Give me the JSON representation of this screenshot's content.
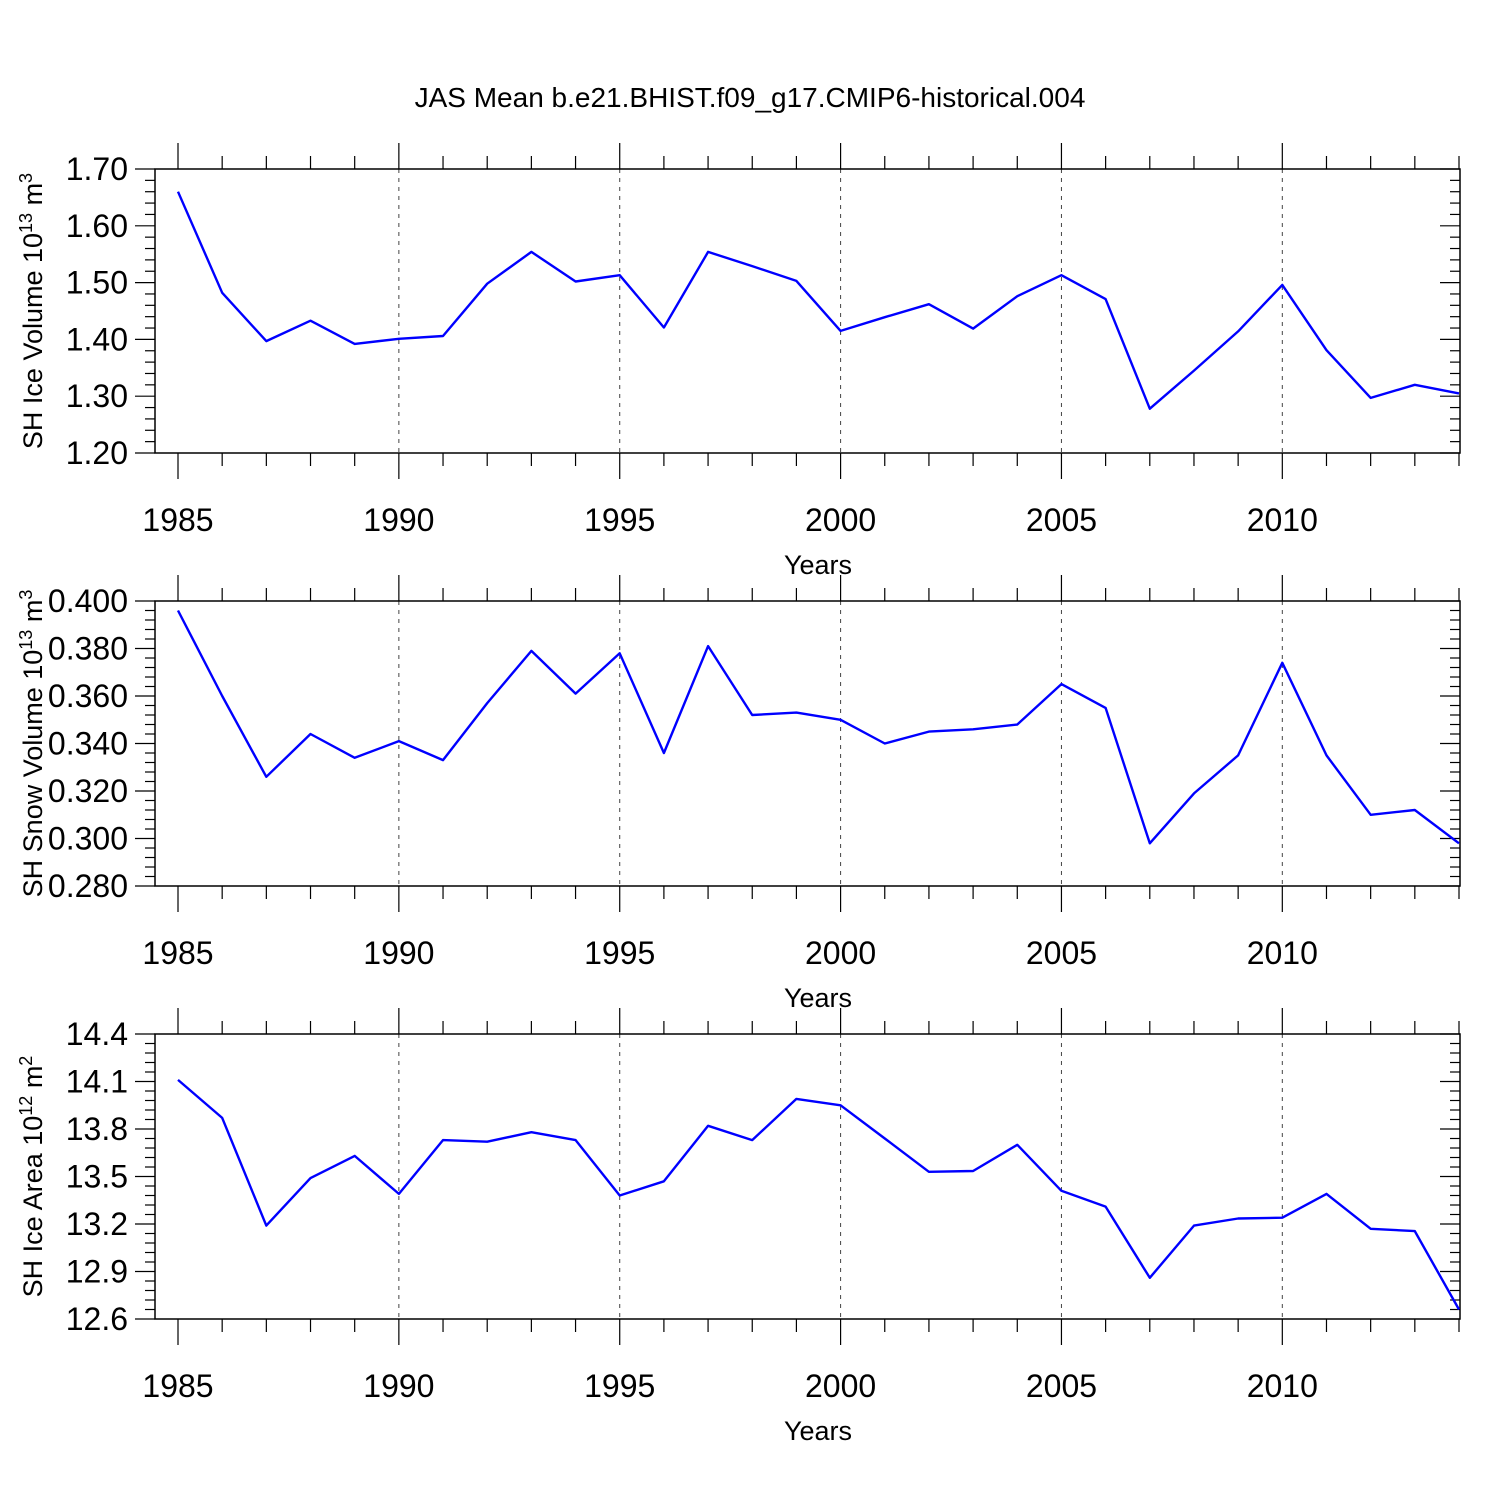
{
  "title": "JAS Mean b.e21.BHIST.f09_g17.CMIP6-historical.004",
  "colors": {
    "series": "#0000ff",
    "axis": "#000000"
  },
  "chart_data": [
    {
      "type": "line",
      "xlabel": "Years",
      "ylabel_main": "SH Ice Volume 10",
      "ylabel_exp": "13",
      "ylabel_unit": " m",
      "ylabel_unit_exp": "3",
      "xlim": [
        1985,
        2014
      ],
      "ylim": [
        1.2,
        1.7
      ],
      "yticks": [
        1.2,
        1.3,
        1.4,
        1.5,
        1.6,
        1.7
      ],
      "ytick_labels": [
        "1.20",
        "1.30",
        "1.40",
        "1.50",
        "1.60",
        "1.70"
      ],
      "xticks": [
        1985,
        1990,
        1995,
        2000,
        2005,
        2010
      ],
      "xtick_labels": [
        "1985",
        "1990",
        "1995",
        "2000",
        "2005",
        "2010"
      ],
      "x": [
        1985,
        1986,
        1987,
        1988,
        1989,
        1990,
        1991,
        1992,
        1993,
        1994,
        1995,
        1996,
        1997,
        1998,
        1999,
        2000,
        2001,
        2002,
        2003,
        2004,
        2005,
        2006,
        2007,
        2008,
        2009,
        2010,
        2011,
        2012,
        2013,
        2014
      ],
      "y": [
        1.66,
        1.482,
        1.397,
        1.433,
        1.392,
        1.401,
        1.406,
        1.498,
        1.554,
        1.502,
        1.513,
        1.421,
        1.554,
        1.529,
        1.503,
        1.415,
        1.439,
        1.462,
        1.419,
        1.476,
        1.513,
        1.471,
        1.278,
        1.345,
        1.414,
        1.496,
        1.381,
        1.297,
        1.32,
        1.305
      ]
    },
    {
      "type": "line",
      "xlabel": "Years",
      "ylabel_main": "SH Snow Volume 10",
      "ylabel_exp": "13",
      "ylabel_unit": " m",
      "ylabel_unit_exp": "3",
      "xlim": [
        1985,
        2014
      ],
      "ylim": [
        0.28,
        0.4
      ],
      "yticks": [
        0.28,
        0.3,
        0.32,
        0.34,
        0.36,
        0.38,
        0.4
      ],
      "ytick_labels": [
        "0.280",
        "0.300",
        "0.320",
        "0.340",
        "0.360",
        "0.380",
        "0.400"
      ],
      "xticks": [
        1985,
        1990,
        1995,
        2000,
        2005,
        2010
      ],
      "xtick_labels": [
        "1985",
        "1990",
        "1995",
        "2000",
        "2005",
        "2010"
      ],
      "x": [
        1985,
        1986,
        1987,
        1988,
        1989,
        1990,
        1991,
        1992,
        1993,
        1994,
        1995,
        1996,
        1997,
        1998,
        1999,
        2000,
        2001,
        2002,
        2003,
        2004,
        2005,
        2006,
        2007,
        2008,
        2009,
        2010,
        2011,
        2012,
        2013,
        2014
      ],
      "y": [
        0.396,
        0.36,
        0.326,
        0.344,
        0.334,
        0.341,
        0.333,
        0.357,
        0.379,
        0.361,
        0.378,
        0.336,
        0.381,
        0.352,
        0.353,
        0.35,
        0.34,
        0.345,
        0.346,
        0.348,
        0.365,
        0.355,
        0.298,
        0.319,
        0.335,
        0.374,
        0.335,
        0.31,
        0.312,
        0.298
      ]
    },
    {
      "type": "line",
      "xlabel": "Years",
      "ylabel_main": "SH Ice Area 10",
      "ylabel_exp": "12",
      "ylabel_unit": " m",
      "ylabel_unit_exp": "2",
      "xlim": [
        1985,
        2014
      ],
      "ylim": [
        12.6,
        14.4
      ],
      "yticks": [
        12.6,
        12.9,
        13.2,
        13.5,
        13.8,
        14.1,
        14.4
      ],
      "ytick_labels": [
        "12.6",
        "12.9",
        "13.2",
        "13.5",
        "13.8",
        "14.1",
        "14.4"
      ],
      "xticks": [
        1985,
        1990,
        1995,
        2000,
        2005,
        2010
      ],
      "xtick_labels": [
        "1985",
        "1990",
        "1995",
        "2000",
        "2005",
        "2010"
      ],
      "x": [
        1985,
        1986,
        1987,
        1988,
        1989,
        1990,
        1991,
        1992,
        1993,
        1994,
        1995,
        1996,
        1997,
        1998,
        1999,
        2000,
        2001,
        2002,
        2003,
        2004,
        2005,
        2006,
        2007,
        2008,
        2009,
        2010,
        2011,
        2012,
        2013,
        2014
      ],
      "y": [
        14.11,
        13.87,
        13.19,
        13.49,
        13.63,
        13.39,
        13.73,
        13.72,
        13.78,
        13.73,
        13.38,
        13.47,
        13.82,
        13.73,
        13.99,
        13.95,
        13.74,
        13.53,
        13.535,
        13.7,
        13.41,
        13.31,
        12.86,
        13.19,
        13.235,
        13.24,
        13.39,
        13.17,
        13.155,
        12.66
      ]
    }
  ]
}
